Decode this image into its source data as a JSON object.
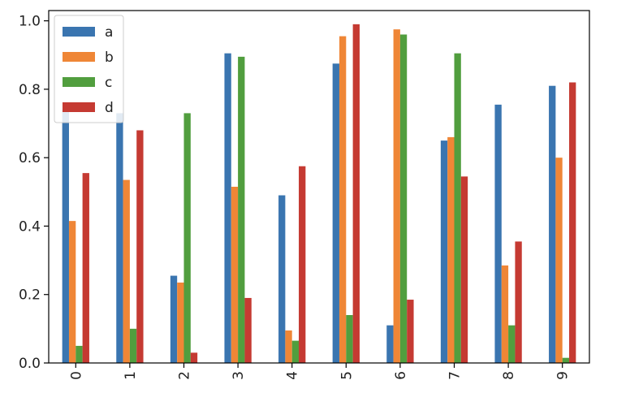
{
  "chart_data": {
    "type": "bar",
    "title": "",
    "xlabel": "",
    "ylabel": "",
    "categories": [
      "0",
      "1",
      "2",
      "3",
      "4",
      "5",
      "6",
      "7",
      "8",
      "9"
    ],
    "ylim": [
      0,
      1.03
    ],
    "yticks": [
      "0.0",
      "0.2",
      "0.4",
      "0.6",
      "0.8",
      "1.0"
    ],
    "grid": false,
    "legend_position": "top-left",
    "series": [
      {
        "name": "a",
        "color": "#3a75b0",
        "values": [
          0.74,
          0.73,
          0.255,
          0.905,
          0.49,
          0.875,
          0.11,
          0.65,
          0.755,
          0.81
        ]
      },
      {
        "name": "b",
        "color": "#ef8636",
        "values": [
          0.415,
          0.535,
          0.235,
          0.515,
          0.095,
          0.955,
          0.975,
          0.66,
          0.285,
          0.6
        ]
      },
      {
        "name": "c",
        "color": "#519e3e",
        "values": [
          0.05,
          0.1,
          0.73,
          0.895,
          0.065,
          0.14,
          0.96,
          0.905,
          0.11,
          0.015
        ]
      },
      {
        "name": "d",
        "color": "#c53a32",
        "values": [
          0.555,
          0.68,
          0.03,
          0.19,
          0.575,
          0.99,
          0.185,
          0.545,
          0.355,
          0.82
        ]
      }
    ]
  }
}
